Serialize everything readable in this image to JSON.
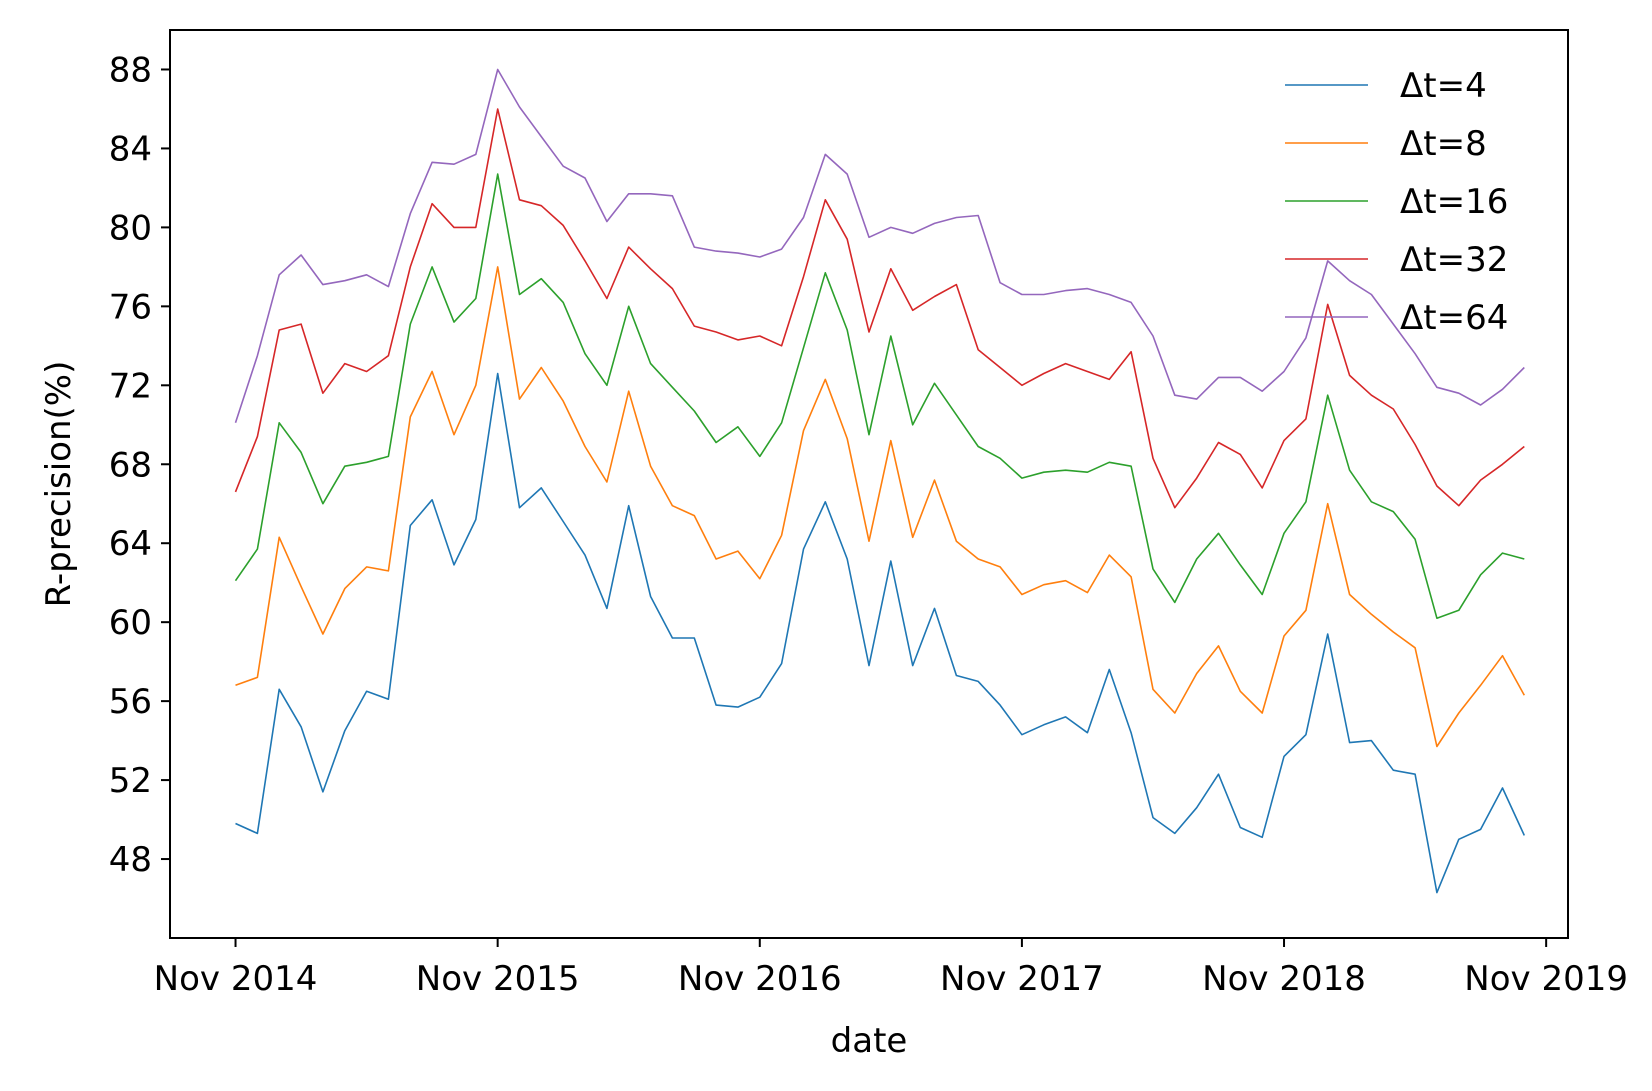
{
  "chart_data": {
    "type": "line",
    "xlabel": "date",
    "ylabel": "R-precision(%)",
    "ylim": [
      44,
      90
    ],
    "yticks": [
      48,
      52,
      56,
      60,
      64,
      68,
      72,
      76,
      80,
      84,
      88
    ],
    "xlim": [
      "2014-08",
      "2019-12"
    ],
    "xticks": [
      {
        "value": "2014-11",
        "label": "Nov 2014"
      },
      {
        "value": "2015-11",
        "label": "Nov 2015"
      },
      {
        "value": "2016-11",
        "label": "Nov 2016"
      },
      {
        "value": "2017-11",
        "label": "Nov 2017"
      },
      {
        "value": "2018-11",
        "label": "Nov 2018"
      },
      {
        "value": "2019-11",
        "label": "Nov 2019"
      }
    ],
    "grid": false,
    "legend_position": "top-right",
    "x": [
      "2014-11",
      "2014-12",
      "2015-01",
      "2015-02",
      "2015-03",
      "2015-04",
      "2015-05",
      "2015-06",
      "2015-07",
      "2015-08",
      "2015-09",
      "2015-10",
      "2015-11",
      "2015-12",
      "2016-01",
      "2016-02",
      "2016-03",
      "2016-04",
      "2016-05",
      "2016-06",
      "2016-07",
      "2016-08",
      "2016-09",
      "2016-10",
      "2016-11",
      "2016-12",
      "2017-01",
      "2017-02",
      "2017-03",
      "2017-04",
      "2017-05",
      "2017-06",
      "2017-07",
      "2017-08",
      "2017-09",
      "2017-10",
      "2017-11",
      "2017-12",
      "2018-01",
      "2018-02",
      "2018-03",
      "2018-04",
      "2018-05",
      "2018-06",
      "2018-07",
      "2018-08",
      "2018-09",
      "2018-10",
      "2018-11",
      "2018-12",
      "2019-01",
      "2019-02",
      "2019-03",
      "2019-04",
      "2019-05",
      "2019-06",
      "2019-07",
      "2019-08",
      "2019-09",
      "2019-10"
    ],
    "series": [
      {
        "name": "Δt=4",
        "color": "#1f77b4",
        "values": [
          49.8,
          49.3,
          56.6,
          54.7,
          51.4,
          54.5,
          56.5,
          56.1,
          64.9,
          66.2,
          62.9,
          65.2,
          72.6,
          65.8,
          66.8,
          65.1,
          63.4,
          60.7,
          65.9,
          61.3,
          59.2,
          59.2,
          55.8,
          55.7,
          56.2,
          57.9,
          63.7,
          66.1,
          63.2,
          57.8,
          63.1,
          57.8,
          60.7,
          57.3,
          57.0,
          55.8,
          54.3,
          54.8,
          55.2,
          54.4,
          57.6,
          54.4,
          50.1,
          49.3,
          50.6,
          52.3,
          49.6,
          49.1,
          53.2,
          54.3,
          59.4,
          53.9,
          54.0,
          52.5,
          52.3,
          46.3,
          49.0,
          49.5,
          51.6,
          49.2
        ]
      },
      {
        "name": "Δt=8",
        "color": "#ff7f0e",
        "values": [
          56.8,
          57.2,
          64.3,
          61.8,
          59.4,
          61.7,
          62.8,
          62.6,
          70.4,
          72.7,
          69.5,
          72.0,
          78.0,
          71.3,
          72.9,
          71.2,
          68.9,
          67.1,
          71.7,
          67.9,
          65.9,
          65.4,
          63.2,
          63.6,
          62.2,
          64.4,
          69.7,
          72.3,
          69.3,
          64.1,
          69.2,
          64.3,
          67.2,
          64.1,
          63.2,
          62.8,
          61.4,
          61.9,
          62.1,
          61.5,
          63.4,
          62.3,
          56.6,
          55.4,
          57.4,
          58.8,
          56.5,
          55.4,
          59.3,
          60.6,
          66.0,
          61.4,
          60.4,
          59.5,
          58.7,
          53.7,
          55.4,
          56.8,
          58.3,
          56.3
        ]
      },
      {
        "name": "Δt=16",
        "color": "#2ca02c",
        "values": [
          62.1,
          63.7,
          70.1,
          68.6,
          66.0,
          67.9,
          68.1,
          68.4,
          75.1,
          78.0,
          75.2,
          76.4,
          82.7,
          76.6,
          77.4,
          76.2,
          73.6,
          72.0,
          76.0,
          73.1,
          71.9,
          70.7,
          69.1,
          69.9,
          68.4,
          70.1,
          73.9,
          77.7,
          74.8,
          69.5,
          74.5,
          70.0,
          72.1,
          70.5,
          68.9,
          68.3,
          67.3,
          67.6,
          67.7,
          67.6,
          68.1,
          67.9,
          62.7,
          61.0,
          63.2,
          64.5,
          62.9,
          61.4,
          64.5,
          66.1,
          71.5,
          67.7,
          66.1,
          65.6,
          64.2,
          60.2,
          60.6,
          62.4,
          63.5,
          63.2
        ]
      },
      {
        "name": "Δt=32",
        "color": "#d62728",
        "values": [
          66.6,
          69.4,
          74.8,
          75.1,
          71.6,
          73.1,
          72.7,
          73.5,
          78.0,
          81.2,
          80.0,
          80.0,
          86.0,
          81.4,
          81.1,
          80.1,
          78.3,
          76.4,
          79.0,
          77.9,
          76.9,
          75.0,
          74.7,
          74.3,
          74.5,
          74.0,
          77.5,
          81.4,
          79.4,
          74.7,
          77.9,
          75.8,
          76.5,
          77.1,
          73.8,
          72.9,
          72.0,
          72.6,
          73.1,
          72.7,
          72.3,
          73.7,
          68.3,
          65.8,
          67.3,
          69.1,
          68.5,
          66.8,
          69.2,
          70.3,
          76.1,
          72.5,
          71.5,
          70.8,
          69.0,
          66.9,
          65.9,
          67.2,
          68.0,
          68.9
        ]
      },
      {
        "name": "Δt=64",
        "color": "#9467bd",
        "values": [
          70.1,
          73.5,
          77.6,
          78.6,
          77.1,
          77.3,
          77.6,
          77.0,
          80.7,
          83.3,
          83.2,
          83.7,
          88.0,
          86.1,
          84.6,
          83.1,
          82.5,
          80.3,
          81.7,
          81.7,
          81.6,
          79.0,
          78.8,
          78.7,
          78.5,
          78.9,
          80.5,
          83.7,
          82.7,
          79.5,
          80.0,
          79.7,
          80.2,
          80.5,
          80.6,
          77.2,
          76.6,
          76.6,
          76.8,
          76.9,
          76.6,
          76.2,
          74.5,
          71.5,
          71.3,
          72.4,
          72.4,
          71.7,
          72.7,
          74.4,
          78.3,
          77.3,
          76.6,
          75.1,
          73.6,
          71.9,
          71.6,
          71.0,
          71.8,
          72.9
        ]
      }
    ]
  }
}
